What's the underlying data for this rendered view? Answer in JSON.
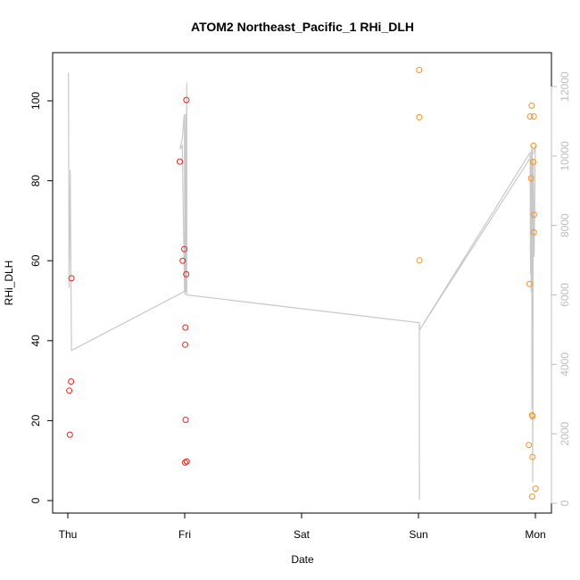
{
  "chart_data": {
    "type": "scatter",
    "title": "ATOM2 Northeast_Pacific_1 RHi_DLH",
    "xlabel": "Date",
    "ylabel": "RHi_DLH",
    "x_ticks": [
      "Thu",
      "Fri",
      "Sat",
      "Sun",
      "Mon"
    ],
    "xlim": [
      "Thu 00:00",
      "Mon 00:00"
    ],
    "ylim": [
      0,
      110
    ],
    "y_ticks": [
      0,
      20,
      40,
      60,
      80,
      100
    ],
    "y2_ticks": [
      0,
      2000,
      4000,
      6000,
      8000,
      10000,
      12000
    ],
    "y2lim": [
      0,
      12500
    ],
    "grid": false,
    "colors": {
      "flight_1": "#e8231c",
      "flight_2": "#f6921e",
      "altitude_line": "#c8c8c8",
      "right_axis": "#bdbdbd"
    },
    "series": [
      {
        "color_key": "flight_1",
        "points": [
          {
            "x": "Thu 00:18",
            "y": 27.5
          },
          {
            "x": "Thu 00:25",
            "y": 16.5
          },
          {
            "x": "Thu 00:40",
            "y": 29.8
          },
          {
            "x": "Thu 00:45",
            "y": 55.6
          },
          {
            "x": "Thu 23:00",
            "y": 84.8
          },
          {
            "x": "Thu 23:35",
            "y": 60.0
          },
          {
            "x": "Thu 23:54",
            "y": 62.9
          },
          {
            "x": "Fri 00:04",
            "y": 9.5
          },
          {
            "x": "Fri 00:06",
            "y": 39.0
          },
          {
            "x": "Fri 00:09",
            "y": 43.3
          },
          {
            "x": "Fri 00:11",
            "y": 20.2
          },
          {
            "x": "Fri 00:19",
            "y": 56.6
          },
          {
            "x": "Fri 00:21",
            "y": 100.2
          },
          {
            "x": "Fri 00:25",
            "y": 9.8
          }
        ]
      },
      {
        "color_key": "flight_2",
        "points": [
          {
            "x": "Sun 00:08",
            "y": 107.7
          },
          {
            "x": "Sun 00:10",
            "y": 95.9
          },
          {
            "x": "Sun 00:12",
            "y": 60.1
          },
          {
            "x": "Sun 22:40",
            "y": 13.9
          },
          {
            "x": "Sun 22:48",
            "y": 54.2
          },
          {
            "x": "Sun 22:55",
            "y": 96.1
          },
          {
            "x": "Sun 23:07",
            "y": 80.6
          },
          {
            "x": "Sun 23:14",
            "y": 98.8
          },
          {
            "x": "Sun 23:18",
            "y": 21.4
          },
          {
            "x": "Sun 23:19",
            "y": 1.0
          },
          {
            "x": "Sun 23:25",
            "y": 10.9
          },
          {
            "x": "Sun 23:27",
            "y": 21.1
          },
          {
            "x": "Sun 23:34",
            "y": 84.7
          },
          {
            "x": "Sun 23:37",
            "y": 88.8
          },
          {
            "x": "Sun 23:40",
            "y": 96.1
          },
          {
            "x": "Sun 23:41",
            "y": 67.1
          },
          {
            "x": "Sun 23:43",
            "y": 71.5
          },
          {
            "x": "Mon 00:02",
            "y": 3.0
          }
        ]
      }
    ],
    "altitude_line": [
      {
        "x": "Thu 00:08",
        "y2": 12400
      },
      {
        "x": "Thu 00:15",
        "y2": 6200
      },
      {
        "x": "Thu 00:30",
        "y2": 9600
      },
      {
        "x": "Thu 00:45",
        "y2": 4400
      },
      {
        "x": "Thu 23:58",
        "y2": 6100
      },
      {
        "x": "Thu 23:30",
        "y2": 10300
      },
      {
        "x": "Thu 23:02",
        "y2": 10200
      },
      {
        "x": "Thu 23:30",
        "y2": 10500
      },
      {
        "x": "Thu 23:55",
        "y2": 11200
      },
      {
        "x": "Fri 00:06",
        "y2": 6000
      },
      {
        "x": "Fri 00:12",
        "y2": 11200
      },
      {
        "x": "Fri 00:15",
        "y2": 6100
      },
      {
        "x": "Fri 00:25",
        "y2": 12100
      },
      {
        "x": "Fri 00:25",
        "y2": 6000
      },
      {
        "x": "Sun 00:10",
        "y2": 5200
      },
      {
        "x": "Sun 00:12",
        "y2": 100
      },
      {
        "x": "Sun 00:10",
        "y2": 5200
      },
      {
        "x": "Sun 00:15",
        "y2": 5000
      },
      {
        "x": "Sun 22:55",
        "y2": 10100
      },
      {
        "x": "Sun 23:00",
        "y2": 6600
      },
      {
        "x": "Sun 23:02",
        "y2": 9900
      },
      {
        "x": "Sun 23:08",
        "y2": 6100
      },
      {
        "x": "Sun 23:14",
        "y2": 10200
      },
      {
        "x": "Sun 23:18",
        "y2": 2700
      },
      {
        "x": "Sun 23:22",
        "y2": 10300
      },
      {
        "x": "Sun 23:27",
        "y2": 600
      },
      {
        "x": "Sun 23:34",
        "y2": 9900
      },
      {
        "x": "Sun 23:45",
        "y2": 7100
      },
      {
        "x": "Mon 00:00",
        "y2": 10300
      },
      {
        "x": "Sun 23:40",
        "y2": 10100
      },
      {
        "x": "Sun 00:15",
        "y2": 5000
      }
    ]
  }
}
